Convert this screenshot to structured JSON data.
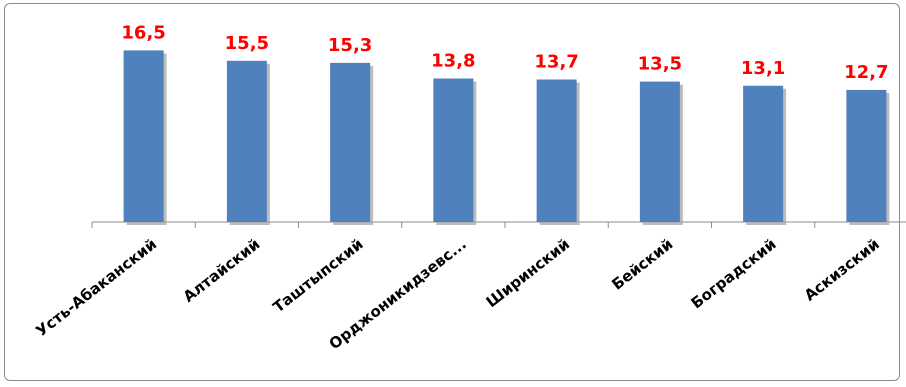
{
  "chart_data": {
    "type": "bar",
    "categories": [
      "Усть-Абаканский",
      "Алтайский",
      "Таштыпский",
      "Орджоникидзевс...",
      "Ширинский",
      "Бейский",
      "Боградский",
      "Аскизский"
    ],
    "values": [
      16.5,
      15.5,
      15.3,
      13.8,
      13.7,
      13.5,
      13.1,
      12.7
    ],
    "value_labels": [
      "16,5",
      "15,5",
      "15,3",
      "13,8",
      "13,7",
      "13,5",
      "13,1",
      "12,7"
    ],
    "ylim": [
      0,
      17.5
    ],
    "grid": false,
    "legend": "none"
  },
  "colors": {
    "bar": "#4f81bd",
    "bar_shadow": "#a6a6a6",
    "value_label": "#ff0000",
    "axis": "#8c8c8c"
  }
}
